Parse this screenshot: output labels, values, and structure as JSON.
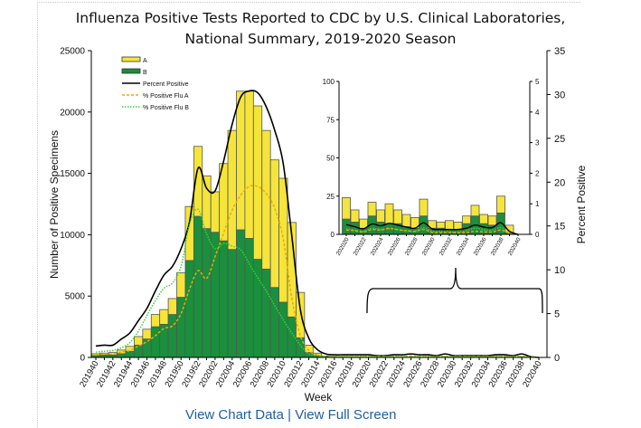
{
  "chart_data": {
    "type": "bar",
    "stacked": true,
    "title": "Influenza Positive Tests Reported to CDC by U.S. Clinical Laboratories,",
    "subtitle": "National Summary,  2019-2020 Season",
    "xlabel": "Week",
    "ylabel": "Number of Positive Specimens",
    "y2label": "Percent Positive",
    "ylim": [
      0,
      25000
    ],
    "y2lim": [
      0,
      35
    ],
    "yticks": [
      "0",
      "5000",
      "10000",
      "15000",
      "20000",
      "25000"
    ],
    "y2ticks": [
      "0",
      "5",
      "10",
      "15",
      "20",
      "25",
      "30",
      "35"
    ],
    "weeks": [
      "201940",
      "201941",
      "201942",
      "201943",
      "201944",
      "201945",
      "201946",
      "201947",
      "201948",
      "201949",
      "201950",
      "201951",
      "201952",
      "202001",
      "202002",
      "202003",
      "202004",
      "202005",
      "202006",
      "202007",
      "202008",
      "202009",
      "202010",
      "202011",
      "202012",
      "202013",
      "202014",
      "202015",
      "202016",
      "202017",
      "202018",
      "202019",
      "202020",
      "202021",
      "202022",
      "202023",
      "202024",
      "202025",
      "202026",
      "202027",
      "202028",
      "202029",
      "202030",
      "202031",
      "202032",
      "202033",
      "202034",
      "202035",
      "202036",
      "202037",
      "202038",
      "202039",
      "202040"
    ],
    "xtick_labels": [
      "201940",
      "201942",
      "201944",
      "201946",
      "201948",
      "201950",
      "201952",
      "202002",
      "202004",
      "202006",
      "202008",
      "202010",
      "202012",
      "202014",
      "202016",
      "202018",
      "202020",
      "202022",
      "202024",
      "202026",
      "202028",
      "202030",
      "202032",
      "202034",
      "202036",
      "202038",
      "202040"
    ],
    "series": [
      {
        "name": "A",
        "color": "#f5e53a",
        "values": [
          150,
          150,
          200,
          300,
          400,
          700,
          800,
          1000,
          1200,
          1300,
          2000,
          4400,
          5700,
          4300,
          3300,
          6300,
          9700,
          11300,
          12000,
          12500,
          11300,
          10400,
          10100,
          7700,
          3700,
          600,
          200,
          60,
          40,
          30,
          20,
          14,
          14,
          8,
          6,
          9,
          8,
          13,
          9,
          8,
          7,
          11,
          5,
          4,
          6,
          5,
          5,
          7,
          6,
          6,
          11,
          5,
          0
        ]
      },
      {
        "name": "B",
        "color": "#1a8f3c",
        "values": [
          150,
          200,
          200,
          300,
          500,
          1000,
          1500,
          2500,
          2700,
          3500,
          4900,
          7900,
          11500,
          10500,
          10200,
          9500,
          8800,
          10400,
          9700,
          8000,
          7200,
          5700,
          4500,
          3300,
          1600,
          400,
          150,
          60,
          40,
          30,
          20,
          10,
          10,
          8,
          4,
          12,
          8,
          7,
          7,
          5,
          4,
          12,
          4,
          4,
          3,
          3,
          7,
          12,
          7,
          6,
          14,
          1,
          0
        ]
      }
    ],
    "lines": [
      {
        "name": "Percent Positive",
        "style": "solid",
        "color": "#000000",
        "axis": "right",
        "values": [
          1.3,
          1.4,
          1.4,
          2.1,
          2.8,
          4.2,
          5.6,
          7.6,
          9.4,
          10.4,
          12.4,
          15.5,
          21.6,
          19.3,
          19.0,
          22.4,
          26.6,
          29.7,
          30.4,
          30.2,
          28.6,
          25.9,
          22.1,
          13.9,
          5.5,
          2.2,
          0.9,
          0.4,
          0.3,
          0.3,
          0.3,
          0.3,
          0.3,
          0.2,
          0.2,
          0.3,
          0.3,
          0.4,
          0.3,
          0.3,
          0.2,
          0.4,
          0.2,
          0.2,
          0.2,
          0.2,
          0.2,
          0.3,
          0.3,
          0.2,
          0.4,
          0.1,
          0.0
        ]
      },
      {
        "name": "% Positive Flu A",
        "style": "dashed",
        "color": "#f0a800",
        "axis": "right",
        "values": [
          0.3,
          0.4,
          0.4,
          0.6,
          0.8,
          1.3,
          1.8,
          2.5,
          3.3,
          3.6,
          5.0,
          7.8,
          9.9,
          9.0,
          11.5,
          14.2,
          16.8,
          18.5,
          19.5,
          19.5,
          18.7,
          17.0,
          13.5,
          6.8,
          2.5,
          0.8,
          0.3,
          0.1,
          0.1,
          0.1,
          0.1,
          0.1,
          0.1,
          0.1,
          0.1,
          0.1,
          0.1,
          0.2,
          0.1,
          0.1,
          0.1,
          0.1,
          0.1,
          0.1,
          0.1,
          0.1,
          0.1,
          0.1,
          0.1,
          0.1,
          0.1,
          0.05,
          0.0
        ]
      },
      {
        "name": "% Positive Flu B",
        "style": "dotted",
        "color": "#3ad23a",
        "axis": "right",
        "values": [
          0.6,
          0.7,
          0.8,
          1.1,
          1.7,
          3.0,
          4.8,
          6.5,
          7.9,
          8.5,
          10.4,
          15.2,
          16.9,
          14.1,
          12.4,
          13.0,
          12.7,
          12.3,
          10.7,
          9.1,
          7.6,
          5.9,
          4.3,
          2.8,
          1.4,
          0.4,
          0.2,
          0.1,
          0.1,
          0.1,
          0.1,
          0.1,
          0.1,
          0.1,
          0.1,
          0.1,
          0.1,
          0.1,
          0.1,
          0.1,
          0.1,
          0.1,
          0.1,
          0.1,
          0.1,
          0.1,
          0.1,
          0.1,
          0.1,
          0.1,
          0.1,
          0.05,
          0.0
        ]
      }
    ],
    "legend": {
      "placement": "top-left",
      "entries": [
        "A",
        "B",
        "Percent Positive",
        "% Positive Flu A",
        "% Positive Flu B"
      ]
    },
    "inset": {
      "ylim": [
        0,
        100
      ],
      "y2lim": [
        0,
        5
      ],
      "yticks": [
        "0",
        "25",
        "50",
        "75",
        "100"
      ],
      "y2ticks": [
        "0",
        "1",
        "2",
        "3",
        "4",
        "5"
      ],
      "weeks": [
        "202020",
        "202021",
        "202022",
        "202023",
        "202024",
        "202025",
        "202026",
        "202027",
        "202028",
        "202029",
        "202030",
        "202031",
        "202032",
        "202033",
        "202034",
        "202035",
        "202036",
        "202037",
        "202038",
        "202039",
        "202040"
      ],
      "xtick_labels": [
        "202020",
        "202022",
        "202024",
        "202026",
        "202028",
        "202030",
        "202032",
        "202034",
        "202036",
        "202038",
        "202040"
      ],
      "A": [
        14,
        8,
        6,
        9,
        8,
        13,
        9,
        8,
        7,
        11,
        5,
        4,
        6,
        5,
        5,
        7,
        6,
        6,
        11,
        5,
        0
      ],
      "B": [
        10,
        8,
        4,
        12,
        8,
        7,
        7,
        5,
        4,
        12,
        4,
        4,
        3,
        3,
        7,
        12,
        7,
        6,
        14,
        1,
        0
      ],
      "percent_positive": [
        0.32,
        0.25,
        0.18,
        0.34,
        0.28,
        0.36,
        0.3,
        0.24,
        0.2,
        0.38,
        0.18,
        0.16,
        0.16,
        0.16,
        0.2,
        0.3,
        0.24,
        0.22,
        0.38,
        0.1,
        0
      ],
      "pct_a": [
        0.14,
        0.12,
        0.08,
        0.16,
        0.14,
        0.2,
        0.15,
        0.12,
        0.1,
        0.16,
        0.06,
        0.05,
        0.06,
        0.05,
        0.06,
        0.1,
        0.08,
        0.08,
        0.14,
        0.04,
        0
      ],
      "pct_b": [
        0.18,
        0.14,
        0.1,
        0.2,
        0.16,
        0.18,
        0.16,
        0.12,
        0.1,
        0.22,
        0.1,
        0.1,
        0.08,
        0.08,
        0.12,
        0.2,
        0.15,
        0.14,
        0.22,
        0.05,
        0
      ]
    }
  },
  "footer": {
    "view_chart_data": "View Chart Data",
    "separator": " | ",
    "view_full_screen": "View Full Screen"
  }
}
